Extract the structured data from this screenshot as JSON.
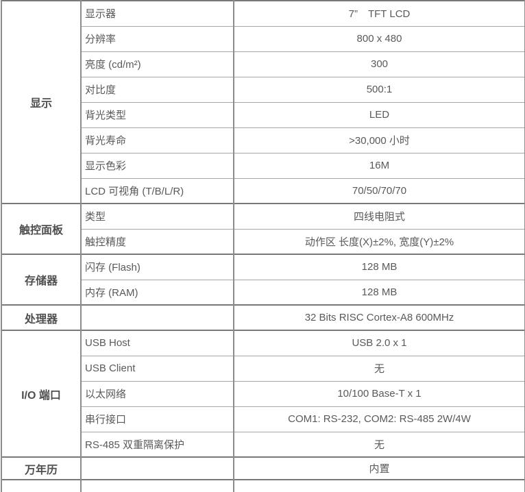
{
  "colors": {
    "outer_border": "#787878",
    "inner_border": "#a6a6a6",
    "column_border": "#8c8c8c",
    "text": "#595959",
    "category_text": "#4f4f4f",
    "background": "#ffffff"
  },
  "table": {
    "sections": [
      {
        "name": "显示",
        "rows": [
          {
            "label": "显示器",
            "value": "7”　TFT LCD"
          },
          {
            "label": "分辨率",
            "value": "800 x 480"
          },
          {
            "label": "亮度 (cd/m²)",
            "value": "300"
          },
          {
            "label": "对比度",
            "value": "500:1"
          },
          {
            "label": "背光类型",
            "value": "LED"
          },
          {
            "label": "背光寿命",
            "value": ">30,000 小时"
          },
          {
            "label": "显示色彩",
            "value": "16M"
          },
          {
            "label": "LCD 可视角 (T/B/L/R)",
            "value": "70/50/70/70"
          }
        ]
      },
      {
        "name": "触控面板",
        "rows": [
          {
            "label": "类型",
            "value": "四线电阻式"
          },
          {
            "label": "触控精度",
            "value": "动作区 长度(X)±2%, 宽度(Y)±2%"
          }
        ]
      },
      {
        "name": "存储器",
        "rows": [
          {
            "label": "闪存 (Flash)",
            "value": "128 MB"
          },
          {
            "label": "内存 (RAM)",
            "value": "128 MB"
          }
        ]
      },
      {
        "name": "处理器",
        "rows": [
          {
            "label": "",
            "value": "32 Bits RISC Cortex-A8 600MHz"
          }
        ]
      },
      {
        "name": "I/O 端口",
        "rows": [
          {
            "label": "USB Host",
            "value": "USB 2.0 x 1"
          },
          {
            "label": "USB Client",
            "value": "无"
          },
          {
            "label": "以太网络",
            "value": "10/100 Base-T x 1"
          },
          {
            "label": "串行接口",
            "value": "COM1: RS-232, COM2: RS-485 2W/4W"
          },
          {
            "label": "RS-485 双重隔离保护",
            "value": "无"
          }
        ]
      },
      {
        "name": "万年历",
        "rows": [
          {
            "label": "",
            "value": "内置"
          }
        ]
      }
    ]
  }
}
